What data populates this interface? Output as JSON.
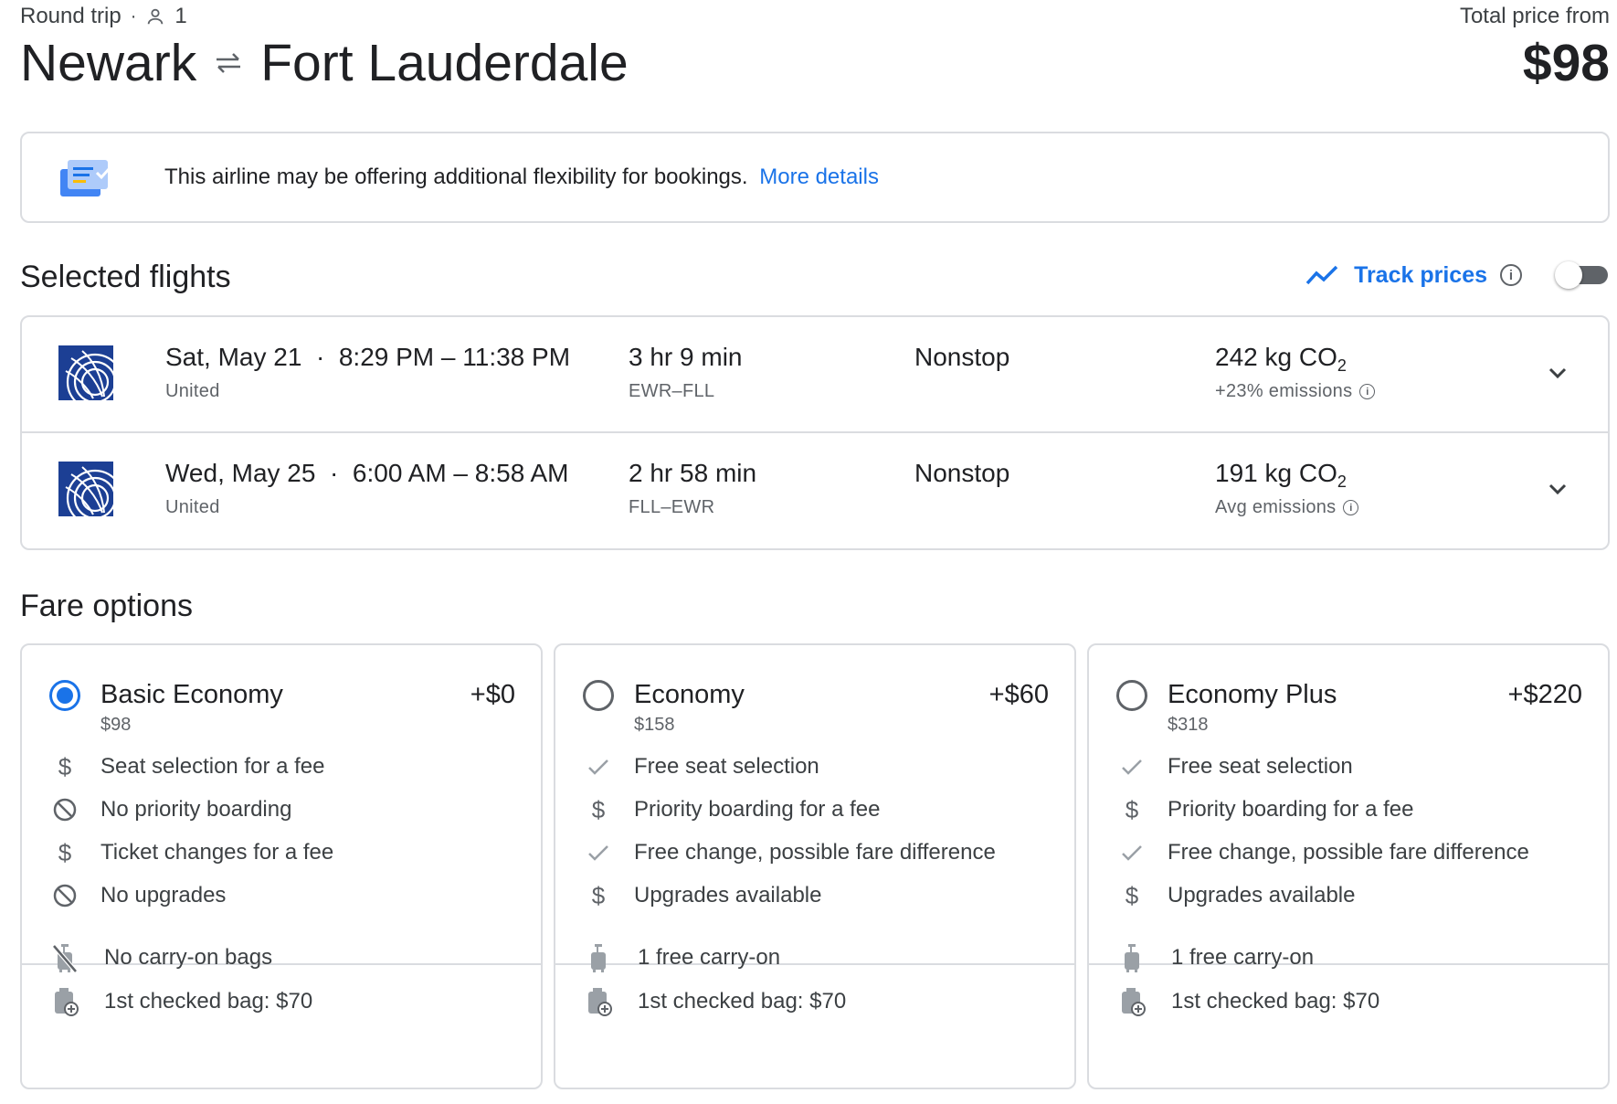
{
  "header": {
    "trip_type": "Round trip",
    "passengers": "1",
    "origin": "Newark",
    "destination": "Fort Lauderdale",
    "price_label": "Total price from",
    "price": "$98"
  },
  "banner": {
    "text": "This airline may be offering additional flexibility for bookings.",
    "link": "More details"
  },
  "selected_flights": {
    "title": "Selected flights",
    "track_label": "Track prices",
    "track_enabled": false,
    "flights": [
      {
        "date": "Sat, May 21",
        "times": "8:29 PM – 11:38 PM",
        "airline": "United",
        "duration": "3 hr 9 min",
        "route": "EWR–FLL",
        "stops": "Nonstop",
        "co2": "242 kg CO",
        "emissions": "+23% emissions"
      },
      {
        "date": "Wed, May 25",
        "times": "6:00 AM – 8:58 AM",
        "airline": "United",
        "duration": "2 hr 58 min",
        "route": "FLL–EWR",
        "stops": "Nonstop",
        "co2": "191 kg CO",
        "emissions": "Avg emissions"
      }
    ]
  },
  "fare_options": {
    "title": "Fare options",
    "fares": [
      {
        "name": "Basic Economy",
        "price": "$98",
        "add": "+$0",
        "selected": true,
        "features": [
          {
            "icon": "dollar-icon",
            "text": "Seat selection for a fee"
          },
          {
            "icon": "prohibited-icon",
            "text": "No priority boarding"
          },
          {
            "icon": "dollar-icon",
            "text": "Ticket changes for a fee"
          },
          {
            "icon": "prohibited-icon",
            "text": "No upgrades"
          }
        ],
        "bags": [
          {
            "icon": "no-carry-on-icon",
            "text": "No carry-on bags"
          },
          {
            "icon": "checked-bag-icon",
            "text": "1st checked bag: $70"
          }
        ]
      },
      {
        "name": "Economy",
        "price": "$158",
        "add": "+$60",
        "selected": false,
        "features": [
          {
            "icon": "check-icon",
            "text": "Free seat selection"
          },
          {
            "icon": "dollar-icon",
            "text": "Priority boarding for a fee"
          },
          {
            "icon": "check-icon",
            "text": "Free change, possible fare difference"
          },
          {
            "icon": "dollar-icon",
            "text": "Upgrades available"
          }
        ],
        "bags": [
          {
            "icon": "carry-on-icon",
            "text": "1 free carry-on"
          },
          {
            "icon": "checked-bag-icon",
            "text": "1st checked bag: $70"
          }
        ]
      },
      {
        "name": "Economy Plus",
        "price": "$318",
        "add": "+$220",
        "selected": false,
        "features": [
          {
            "icon": "check-icon",
            "text": "Free seat selection"
          },
          {
            "icon": "dollar-icon",
            "text": "Priority boarding for a fee"
          },
          {
            "icon": "check-icon",
            "text": "Free change, possible fare difference"
          },
          {
            "icon": "dollar-icon",
            "text": "Upgrades available"
          }
        ],
        "bags": [
          {
            "icon": "carry-on-icon",
            "text": "1 free carry-on"
          },
          {
            "icon": "checked-bag-icon",
            "text": "1st checked bag: $70"
          }
        ]
      }
    ]
  },
  "colors": {
    "accent": "#1a73e8",
    "text": "#202124",
    "muted": "#5f6368",
    "border": "#dadce0",
    "united_blue": "#1c3f94"
  }
}
